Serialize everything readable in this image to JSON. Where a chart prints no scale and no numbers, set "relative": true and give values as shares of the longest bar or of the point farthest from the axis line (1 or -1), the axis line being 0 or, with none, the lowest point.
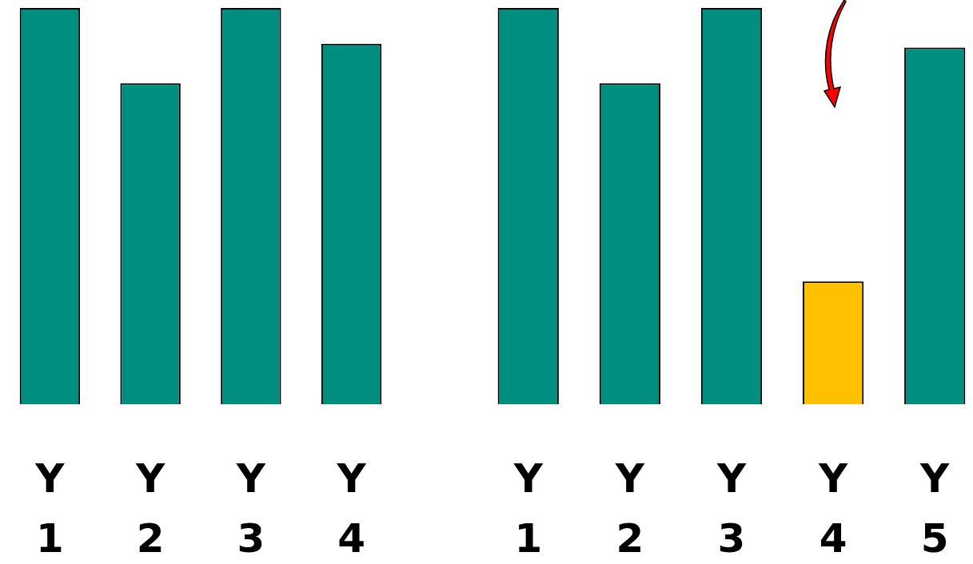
{
  "chart_data": [
    {
      "type": "bar",
      "relative": true,
      "categories": [
        "Y 1",
        "Y 2",
        "Y 3",
        "Y 4"
      ],
      "values": [
        1,
        0.81,
        1,
        0.91
      ],
      "color": "#008e80",
      "grid": false,
      "legend": false
    },
    {
      "type": "bar",
      "relative": true,
      "categories": [
        "Y 1",
        "Y 2",
        "Y 3",
        "Y 4",
        "Y 5"
      ],
      "values": [
        1,
        0.81,
        1,
        0.31,
        0.9
      ],
      "colors": [
        "#008e80",
        "#008e80",
        "#008e80",
        "#ffc000",
        "#008e80"
      ],
      "grid": false,
      "legend": false
    }
  ]
}
